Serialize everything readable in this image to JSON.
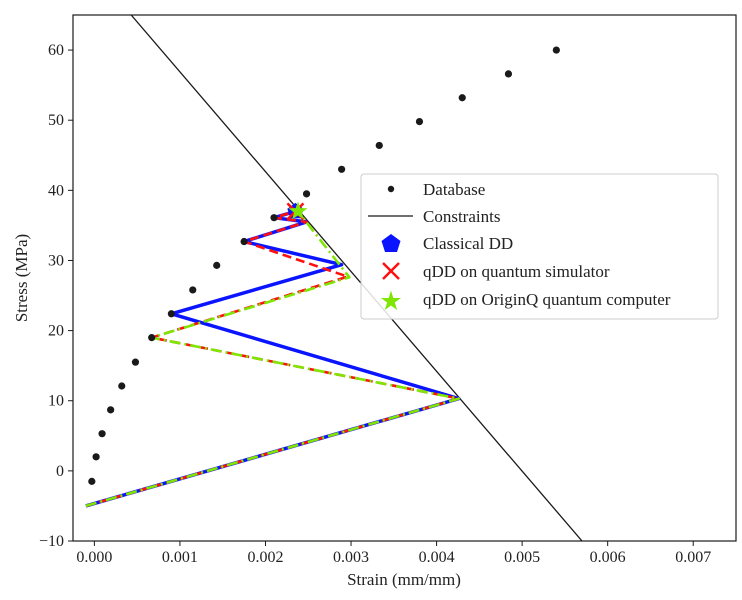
{
  "chart_data": {
    "type": "scatter",
    "title": "",
    "xlabel": "Strain (mm/mm)",
    "ylabel": "Stress (MPa)",
    "xlim": [
      -0.00025,
      0.0075
    ],
    "ylim": [
      -10,
      65
    ],
    "xticks": [
      0.0,
      0.001,
      0.002,
      0.003,
      0.004,
      0.005,
      0.006,
      0.007
    ],
    "xtick_labels": [
      "0.000",
      "0.001",
      "0.002",
      "0.003",
      "0.004",
      "0.005",
      "0.006",
      "0.007"
    ],
    "yticks": [
      -10,
      0,
      10,
      20,
      30,
      40,
      50,
      60
    ],
    "ytick_labels": [
      "−10",
      "0",
      "10",
      "20",
      "30",
      "40",
      "50",
      "60"
    ],
    "legend_position": "center-right",
    "database": {
      "name": "Database",
      "color": "#1a1a1a",
      "x": [
        -3e-05,
        2e-05,
        9e-05,
        0.00019,
        0.00032,
        0.00048,
        0.00067,
        0.0009,
        0.00115,
        0.00143,
        0.00175,
        0.0021,
        0.00248,
        0.00289,
        0.00333,
        0.0038,
        0.0043,
        0.00484,
        0.0054
      ],
      "y": [
        -1.5,
        2.0,
        5.3,
        8.7,
        12.1,
        15.5,
        19.0,
        22.4,
        25.8,
        29.3,
        32.7,
        36.1,
        39.5,
        43.0,
        46.4,
        49.8,
        53.2,
        56.6,
        60.0
      ]
    },
    "constraint": {
      "name": "Constraints",
      "color": "#1a1a1a",
      "x": [
        0.00043,
        0.0057
      ],
      "y": [
        65,
        -10
      ]
    },
    "series": [
      {
        "name": "Classical DD",
        "color": "#0a14ff",
        "style": "solid",
        "x": [
          -0.0001,
          0.00426,
          0.0009,
          0.00289,
          0.00175,
          0.00248,
          0.0021,
          0.00235
        ],
        "y": [
          -5.0,
          10.3,
          22.4,
          29.4,
          32.7,
          35.5,
          36.1,
          37.0
        ],
        "marker": "pentagon",
        "final": [
          0.00235,
          37.0
        ]
      },
      {
        "name": "qDD on quantum simulator",
        "color": "#ff1010",
        "style": "dashed",
        "x": [
          -0.0001,
          0.00426,
          0.00067,
          0.00296,
          0.00175,
          0.00248,
          0.0021,
          0.00235
        ],
        "y": [
          -5.0,
          10.3,
          19.0,
          27.7,
          32.7,
          35.5,
          36.1,
          37.0
        ],
        "marker": "x",
        "final": [
          0.00235,
          37.0
        ]
      },
      {
        "name": "qDD on OriginQ quantum computer",
        "color": "#7ee600",
        "style": "dashdot",
        "x": [
          -0.0001,
          0.00426,
          0.00067,
          0.00298,
          0.00238
        ],
        "y": [
          -5.0,
          10.3,
          19.0,
          27.6,
          37.0
        ],
        "marker": "star",
        "final": [
          0.00238,
          37.0
        ]
      }
    ]
  }
}
